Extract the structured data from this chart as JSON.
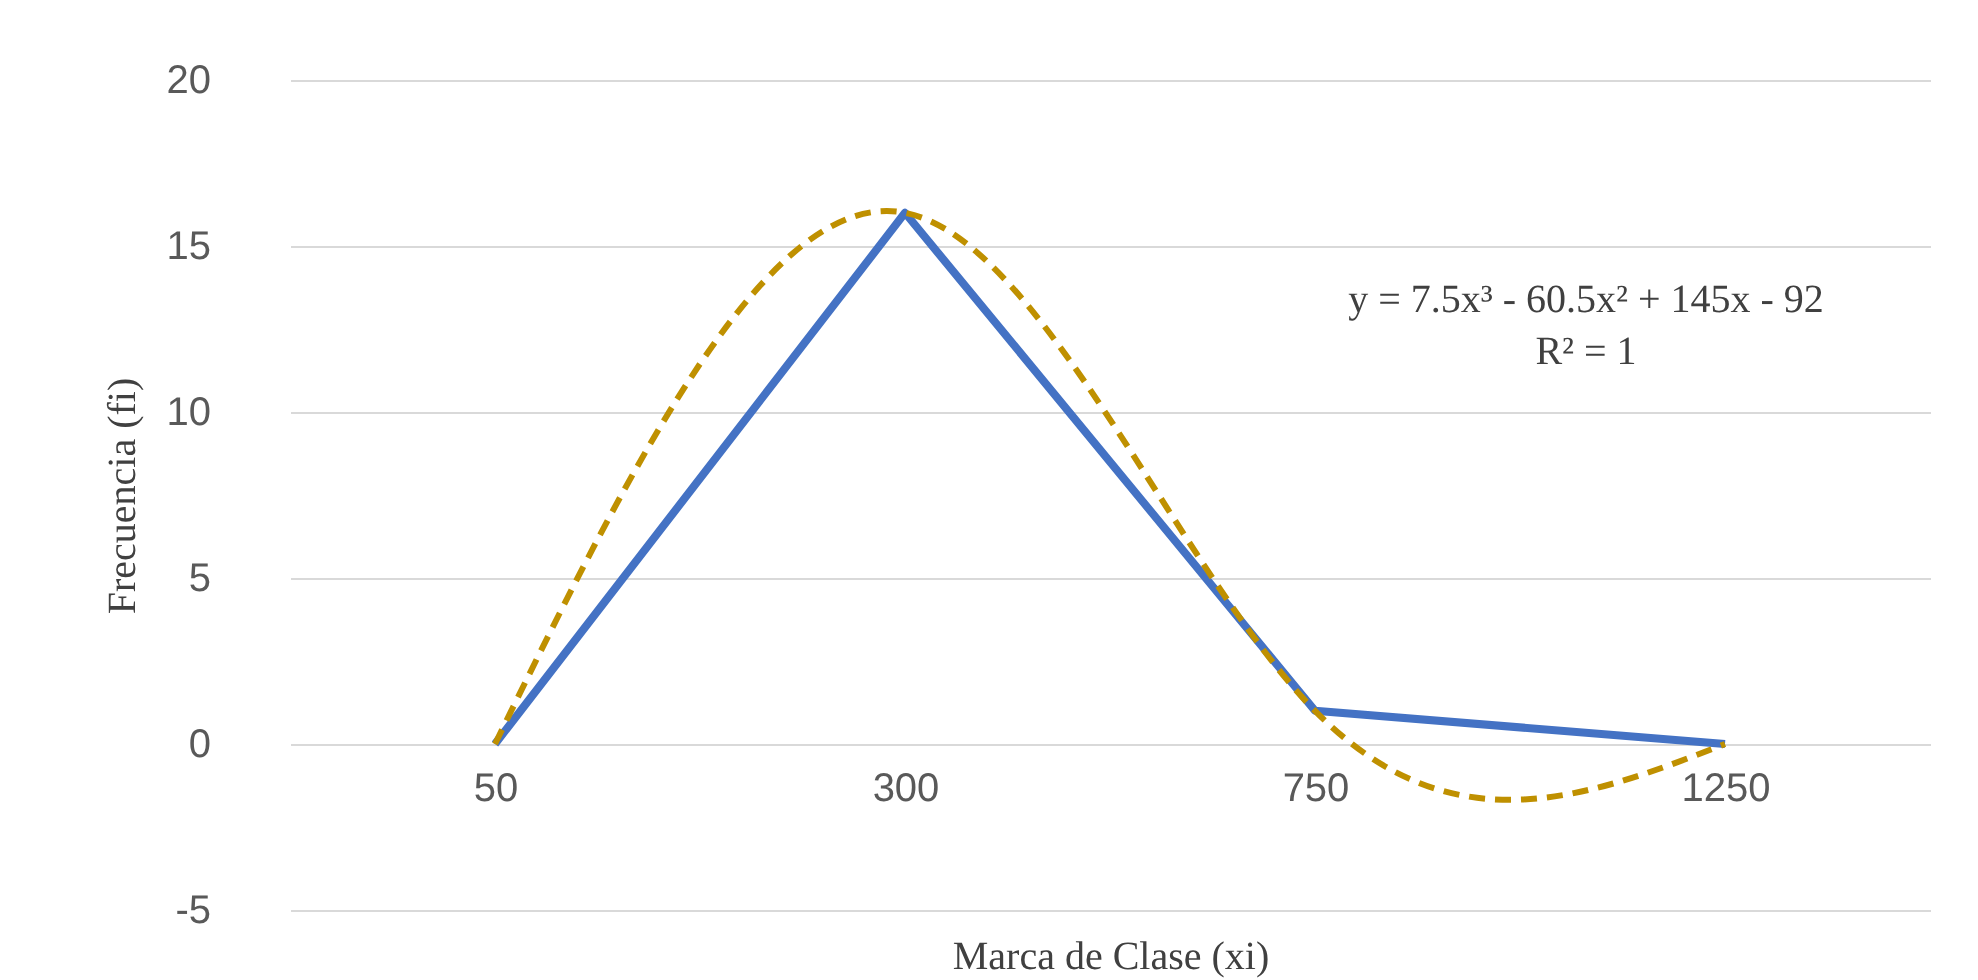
{
  "chart_data": {
    "type": "line",
    "xlabel": "Marca de Clase (xi)",
    "ylabel": "Frecuencia  (fi)",
    "categories": [
      "50",
      "300",
      "750",
      "1250"
    ],
    "ylim": [
      -5,
      20
    ],
    "yticks": [
      -5,
      0,
      5,
      10,
      15,
      20
    ],
    "grid": "y",
    "series": [
      {
        "color": "#4472c4",
        "values": [
          0,
          16,
          1,
          0
        ]
      },
      {
        "type": "line",
        "line_style": "dashed",
        "color": "#bf9000",
        "values": [
          0,
          16,
          1,
          0
        ]
      }
    ],
    "annotations": [
      "y = 7.5x³ - 60.5x² + 145x - 92",
      "R² = 1"
    ]
  }
}
